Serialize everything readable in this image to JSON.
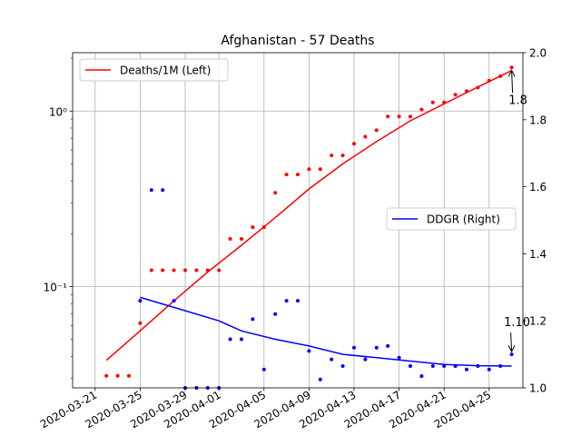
{
  "chart_data": {
    "type": "line",
    "title": "Afghanistan - 57 Deaths",
    "xlabel": "",
    "x_ticks": [
      "2020-03-21",
      "2020-03-25",
      "2020-03-29",
      "2020-04-01",
      "2020-04-05",
      "2020-04-09",
      "2020-04-13",
      "2020-04-17",
      "2020-04-21",
      "2020-04-25"
    ],
    "y_left": {
      "scale": "log",
      "ylim": [
        0.0265,
        2.15
      ],
      "ticks": [
        {
          "value": 0.1,
          "label": "10⁻¹"
        },
        {
          "value": 1,
          "label": "10⁰"
        }
      ]
    },
    "y_right": {
      "scale": "linear",
      "ylim": [
        1.0,
        2.0
      ],
      "ticks": [
        "1.0",
        "1.2",
        "1.4",
        "1.6",
        "1.8",
        "2.0"
      ]
    },
    "grid": true,
    "series": [
      {
        "name": "Deaths/1M (Left)",
        "axis": "left",
        "color": "#ff0000",
        "scatter": [
          [
            "2020-03-22",
            0.031
          ],
          [
            "2020-03-23",
            0.031
          ],
          [
            "2020-03-24",
            0.031
          ],
          [
            "2020-03-25",
            0.062
          ],
          [
            "2020-03-26",
            0.124
          ],
          [
            "2020-03-27",
            0.124
          ],
          [
            "2020-03-28",
            0.124
          ],
          [
            "2020-03-29",
            0.124
          ],
          [
            "2020-03-30",
            0.124
          ],
          [
            "2020-03-31",
            0.124
          ],
          [
            "2020-04-01",
            0.124
          ],
          [
            "2020-04-02",
            0.187
          ],
          [
            "2020-04-03",
            0.187
          ],
          [
            "2020-04-04",
            0.218
          ],
          [
            "2020-04-05",
            0.218
          ],
          [
            "2020-04-06",
            0.342
          ],
          [
            "2020-04-07",
            0.435
          ],
          [
            "2020-04-08",
            0.435
          ],
          [
            "2020-04-09",
            0.466
          ],
          [
            "2020-04-10",
            0.466
          ],
          [
            "2020-04-11",
            0.559
          ],
          [
            "2020-04-12",
            0.559
          ],
          [
            "2020-04-13",
            0.652
          ],
          [
            "2020-04-14",
            0.714
          ],
          [
            "2020-04-15",
            0.777
          ],
          [
            "2020-04-16",
            0.932
          ],
          [
            "2020-04-17",
            0.932
          ],
          [
            "2020-04-18",
            0.932
          ],
          [
            "2020-04-19",
            1.02
          ],
          [
            "2020-04-20",
            1.12
          ],
          [
            "2020-04-21",
            1.12
          ],
          [
            "2020-04-22",
            1.24
          ],
          [
            "2020-04-23",
            1.3
          ],
          [
            "2020-04-24",
            1.36
          ],
          [
            "2020-04-25",
            1.49
          ],
          [
            "2020-04-26",
            1.58
          ],
          [
            "2020-04-27",
            1.77
          ]
        ],
        "fit": [
          [
            "2020-03-22",
            0.038
          ],
          [
            "2020-03-25",
            0.056
          ],
          [
            "2020-03-28",
            0.083
          ],
          [
            "2020-03-31",
            0.121
          ],
          [
            "2020-04-03",
            0.172
          ],
          [
            "2020-04-06",
            0.247
          ],
          [
            "2020-04-09",
            0.36
          ],
          [
            "2020-04-12",
            0.5
          ],
          [
            "2020-04-15",
            0.67
          ],
          [
            "2020-04-18",
            0.88
          ],
          [
            "2020-04-21",
            1.1
          ],
          [
            "2020-04-24",
            1.37
          ],
          [
            "2020-04-27",
            1.7
          ]
        ]
      },
      {
        "name": "DDGR (Right)",
        "axis": "right",
        "color": "#0000ff",
        "scatter": [
          [
            "2020-03-25",
            1.26
          ],
          [
            "2020-03-26",
            1.59
          ],
          [
            "2020-03-27",
            1.59
          ],
          [
            "2020-03-28",
            1.26
          ],
          [
            "2020-03-29",
            1.0
          ],
          [
            "2020-03-30",
            1.0
          ],
          [
            "2020-03-31",
            1.0
          ],
          [
            "2020-04-01",
            1.0
          ],
          [
            "2020-04-02",
            1.145
          ],
          [
            "2020-04-03",
            1.145
          ],
          [
            "2020-04-04",
            1.205
          ],
          [
            "2020-04-05",
            1.055
          ],
          [
            "2020-04-06",
            1.22
          ],
          [
            "2020-04-07",
            1.26
          ],
          [
            "2020-04-08",
            1.26
          ],
          [
            "2020-04-09",
            1.11
          ],
          [
            "2020-04-10",
            1.025
          ],
          [
            "2020-04-11",
            1.085
          ],
          [
            "2020-04-12",
            1.065
          ],
          [
            "2020-04-13",
            1.12
          ],
          [
            "2020-04-14",
            1.085
          ],
          [
            "2020-04-15",
            1.12
          ],
          [
            "2020-04-16",
            1.125
          ],
          [
            "2020-04-17",
            1.09
          ],
          [
            "2020-04-18",
            1.065
          ],
          [
            "2020-04-19",
            1.035
          ],
          [
            "2020-04-20",
            1.065
          ],
          [
            "2020-04-21",
            1.065
          ],
          [
            "2020-04-22",
            1.065
          ],
          [
            "2020-04-23",
            1.055
          ],
          [
            "2020-04-24",
            1.065
          ],
          [
            "2020-04-25",
            1.055
          ],
          [
            "2020-04-26",
            1.065
          ],
          [
            "2020-04-27",
            1.1
          ]
        ],
        "fit": [
          [
            "2020-03-25",
            1.27
          ],
          [
            "2020-03-28",
            1.24
          ],
          [
            "2020-04-01",
            1.2
          ],
          [
            "2020-04-03",
            1.17
          ],
          [
            "2020-04-06",
            1.145
          ],
          [
            "2020-04-09",
            1.125
          ],
          [
            "2020-04-12",
            1.1
          ],
          [
            "2020-04-15",
            1.09
          ],
          [
            "2020-04-18",
            1.08
          ],
          [
            "2020-04-21",
            1.07
          ],
          [
            "2020-04-24",
            1.066
          ],
          [
            "2020-04-27",
            1.065
          ]
        ]
      }
    ],
    "legends": [
      {
        "label": "Deaths/1M (Left)",
        "placement": "upper-left"
      },
      {
        "label": "DDGR (Right)",
        "placement": "center-right"
      }
    ],
    "annotations": [
      {
        "text": "1.8",
        "x": "2020-04-27",
        "axis": "left",
        "y": 1.77
      },
      {
        "text": "1.10",
        "x": "2020-04-27",
        "axis": "right",
        "y": 1.1
      }
    ]
  }
}
